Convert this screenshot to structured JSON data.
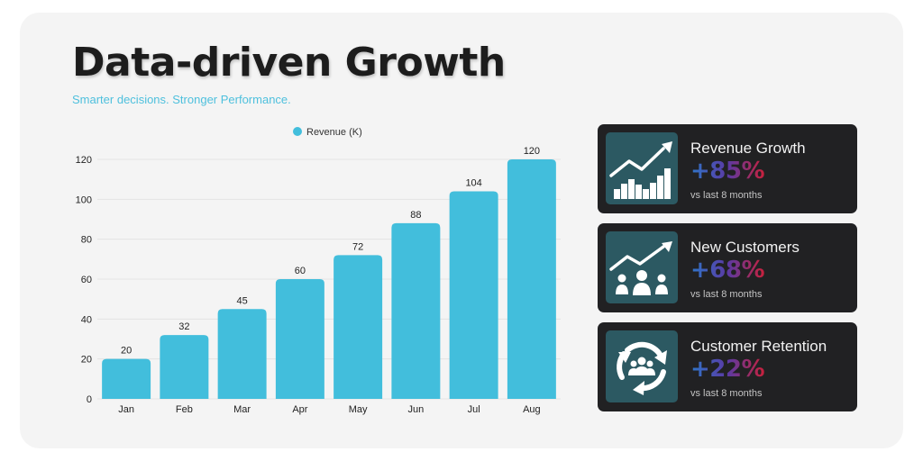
{
  "page": {
    "title": "Data-driven Growth",
    "subtitle": "Smarter decisions. Stronger Performance."
  },
  "colors": {
    "background": "#f4f4f4",
    "bar": "#42bedc",
    "card": "#212123",
    "icon_tile": "#2c5962",
    "value_gradient": [
      "#2f76c9",
      "#5a3aa4",
      "#c8213c"
    ]
  },
  "chart_data": {
    "type": "bar",
    "title": "",
    "xlabel": "",
    "ylabel": "",
    "categories": [
      "Jan",
      "Feb",
      "Mar",
      "Apr",
      "May",
      "Jun",
      "Jul",
      "Aug"
    ],
    "series": [
      {
        "name": "Revenue (K)",
        "values": [
          20,
          32,
          45,
          60,
          72,
          88,
          104,
          120
        ],
        "color": "#42bedc"
      }
    ],
    "ylim": [
      0,
      120
    ],
    "yticks": [
      0,
      20,
      40,
      60,
      80,
      100,
      120
    ],
    "grid": true,
    "legend": "top-center",
    "data_labels": true
  },
  "cards": [
    {
      "title": "Revenue Growth",
      "value": "+85%",
      "note": "vs last 8 months",
      "icon": "bar-chart-trend-icon"
    },
    {
      "title": "New Customers",
      "value": "+68%",
      "note": "vs last 8 months",
      "icon": "people-trend-icon"
    },
    {
      "title": "Customer Retention",
      "value": "+22%",
      "note": "vs last 8 months",
      "icon": "retention-cycle-icon"
    }
  ]
}
